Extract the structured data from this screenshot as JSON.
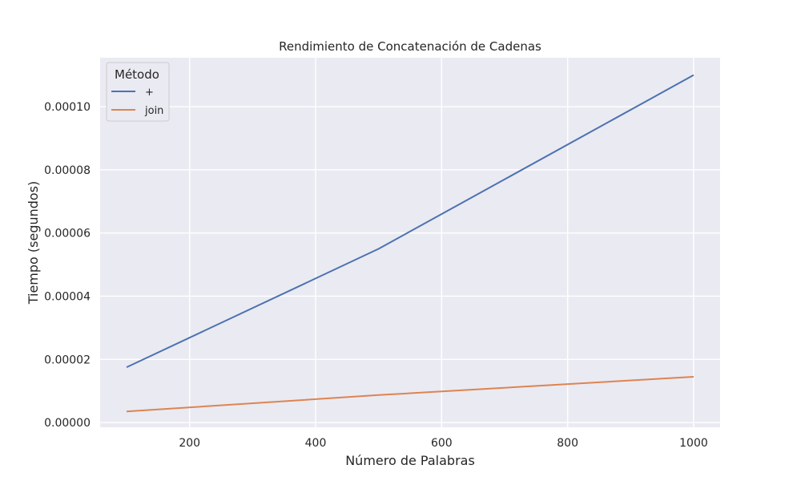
{
  "chart_data": {
    "type": "line",
    "title": "Rendimiento de Concatenación de Cadenas",
    "xlabel": "Número de Palabras",
    "ylabel": "Tiempo (segundos)",
    "xlim": [
      58,
      1042
    ],
    "ylim": [
      -1.5e-06,
      0.0001155
    ],
    "xticks": [
      200,
      400,
      600,
      800,
      1000
    ],
    "xtick_labels": [
      "200",
      "400",
      "600",
      "800",
      "1000"
    ],
    "yticks": [
      0.0,
      2e-05,
      4e-05,
      6e-05,
      8e-05,
      0.0001
    ],
    "ytick_labels": [
      "0.00000",
      "0.00002",
      "0.00004",
      "0.00006",
      "0.00008",
      "0.00010"
    ],
    "grid": true,
    "legend": {
      "title": "Método",
      "placement": "top-left"
    },
    "series": [
      {
        "name": "+",
        "color": "#4c72b0",
        "x": [
          100,
          500,
          1000
        ],
        "y": [
          1.75e-05,
          5.5e-05,
          0.00011
        ]
      },
      {
        "name": "join",
        "color": "#dd8452",
        "x": [
          100,
          500,
          1000
        ],
        "y": [
          3.5e-06,
          8.7e-06,
          1.45e-05
        ]
      }
    ]
  }
}
